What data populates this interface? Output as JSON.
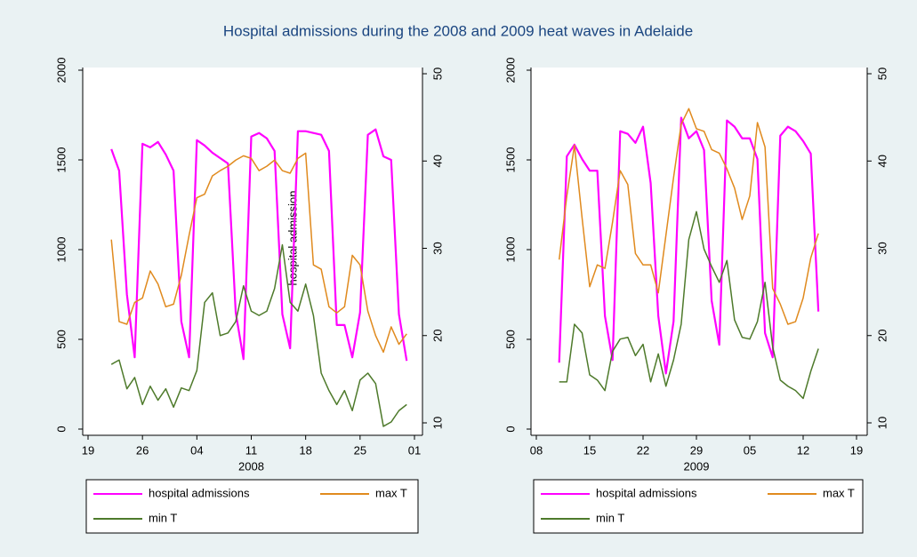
{
  "chart_data": [
    {
      "type": "line",
      "title": "Hospital admissions during the 2008 and 2009 heat waves in Adelaide",
      "xlabel": "2008",
      "annotation": "hospital admission",
      "x": [
        3,
        4,
        5,
        6,
        7,
        8,
        9,
        10,
        11,
        12,
        13,
        14,
        15,
        16,
        17,
        18,
        19,
        20,
        21,
        22,
        23,
        24,
        25,
        26,
        27,
        28,
        29,
        30,
        31,
        32,
        33,
        34,
        35,
        36,
        37,
        38,
        39,
        40,
        41
      ],
      "xlim": [
        0,
        42
      ],
      "xticks": [
        {
          "value": 0,
          "label": "19"
        },
        {
          "value": 7,
          "label": "26"
        },
        {
          "value": 14,
          "label": "04"
        },
        {
          "value": 21,
          "label": "11"
        },
        {
          "value": 28,
          "label": "18"
        },
        {
          "value": 35,
          "label": "25"
        },
        {
          "value": 42,
          "label": "01"
        }
      ],
      "ylim": [
        0,
        2000
      ],
      "yticks": [
        0,
        500,
        1000,
        1500,
        2000
      ],
      "y2lim": [
        10,
        50
      ],
      "y2ticks": [
        10,
        20,
        30,
        40,
        50
      ],
      "series": [
        {
          "name": "hospital admissions",
          "color": "#ff00ff",
          "values": [
            1560,
            1440,
            750,
            400,
            1590,
            1570,
            1600,
            1530,
            1440,
            600,
            400,
            1610,
            1580,
            1540,
            1510,
            1480,
            650,
            390,
            1630,
            1650,
            1620,
            1550,
            640,
            450,
            1660,
            1660,
            1650,
            1640,
            1550,
            580,
            580,
            400,
            650,
            1640,
            1670,
            1520,
            1500,
            640,
            380
          ]
        },
        {
          "name": "max T",
          "color": "#e08a1e",
          "axis": "y2",
          "values": [
            31,
            21.6,
            21.3,
            23.8,
            24.3,
            27.4,
            25.9,
            23.3,
            23.6,
            26.9,
            31.5,
            35.8,
            36.2,
            38.3,
            38.9,
            39.4,
            40.1,
            40.6,
            40.3,
            38.9,
            39.4,
            40.1,
            38.9,
            38.6,
            40.3,
            40.9,
            28.1,
            27.6,
            23.3,
            22.6,
            23.3,
            29.2,
            28.1,
            22.8,
            20,
            18.1,
            21,
            19,
            20.2
          ]
        },
        {
          "name": "min T",
          "color": "#4e7a2b",
          "axis": "y2",
          "values": [
            16.7,
            17.2,
            13.9,
            15.2,
            12.1,
            14.2,
            12.6,
            13.9,
            11.8,
            14,
            13.7,
            16,
            23.8,
            24.9,
            20,
            20.3,
            21.6,
            25.7,
            22.8,
            22.3,
            22.8,
            25.4,
            30.4,
            23.8,
            22.8,
            25.9,
            22.3,
            15.7,
            13.7,
            12.1,
            13.7,
            11.4,
            14.9,
            15.7,
            14.5,
            9.6,
            10.1,
            11.4,
            12.1
          ]
        }
      ]
    },
    {
      "type": "line",
      "xlabel": "2009",
      "x": [
        3,
        4,
        5,
        6,
        7,
        8,
        9,
        10,
        11,
        12,
        13,
        14,
        15,
        16,
        17,
        18,
        19,
        20,
        21,
        22,
        23,
        24,
        25,
        26,
        27,
        28,
        29,
        30,
        31,
        32,
        33,
        34,
        35,
        36,
        37
      ],
      "xlim": [
        0,
        42
      ],
      "xticks": [
        {
          "value": 0,
          "label": "08"
        },
        {
          "value": 7,
          "label": "15"
        },
        {
          "value": 14,
          "label": "22"
        },
        {
          "value": 21,
          "label": "29"
        },
        {
          "value": 28,
          "label": "05"
        },
        {
          "value": 35,
          "label": "12"
        },
        {
          "value": 42,
          "label": "19"
        }
      ],
      "ylim": [
        0,
        2000
      ],
      "yticks": [
        0,
        500,
        1000,
        1500,
        2000
      ],
      "y2lim": [
        10,
        50
      ],
      "y2ticks": [
        10,
        20,
        30,
        40,
        50
      ],
      "series": [
        {
          "name": "hospital admissions",
          "color": "#ff00ff",
          "values": [
            370,
            1520,
            1585,
            1505,
            1440,
            1440,
            630,
            385,
            1660,
            1645,
            1595,
            1685,
            1370,
            630,
            310,
            600,
            1735,
            1620,
            1660,
            1555,
            715,
            470,
            1720,
            1685,
            1620,
            1620,
            1505,
            535,
            400,
            1635,
            1685,
            1660,
            1605,
            1535,
            655
          ]
        },
        {
          "name": "max T",
          "color": "#e08a1e",
          "axis": "y2",
          "values": [
            28.7,
            36,
            41.8,
            33.5,
            25.6,
            28.1,
            27.7,
            33,
            38.9,
            37.3,
            29.4,
            28.1,
            28.1,
            24.9,
            31.5,
            38.1,
            44.2,
            46,
            43.7,
            43.4,
            41.3,
            40.9,
            39.1,
            36.9,
            33.3,
            36,
            44.4,
            41.6,
            25.4,
            23.6,
            21.3,
            21.6,
            24.3,
            28.9,
            31.7
          ]
        },
        {
          "name": "min T",
          "color": "#4e7a2b",
          "axis": "y2",
          "values": [
            14.7,
            14.7,
            21.3,
            20.3,
            15.5,
            14.9,
            13.7,
            18.2,
            19.6,
            19.8,
            17.7,
            19,
            14.7,
            17.9,
            14.2,
            17.2,
            21.3,
            31,
            34.2,
            29.9,
            27.9,
            26.1,
            28.6,
            21.8,
            19.8,
            19.6,
            21.6,
            26.1,
            18.7,
            14.9,
            14.2,
            13.7,
            12.8,
            15.9,
            18.5
          ]
        }
      ]
    }
  ]
}
